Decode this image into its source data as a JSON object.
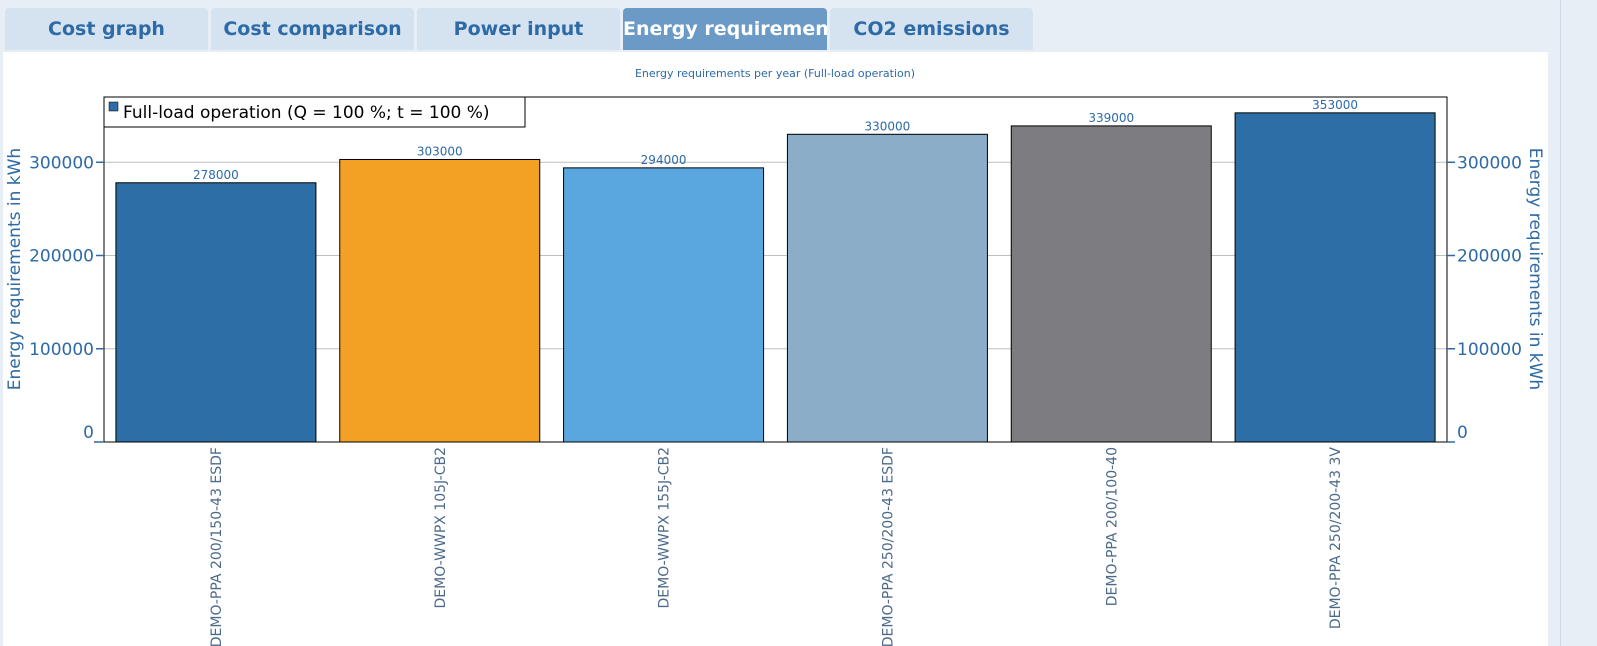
{
  "tabs": [
    {
      "label": "Cost graph",
      "active": false
    },
    {
      "label": "Cost comparison",
      "active": false
    },
    {
      "label": "Power input",
      "active": false
    },
    {
      "label": "Energy requirements",
      "active": true
    },
    {
      "label": "CO2 emissions",
      "active": false
    }
  ],
  "colors": {
    "accent": "#2d6aa6",
    "active_tab": "#6b9ac6",
    "tab_bg": "#d5e3f1",
    "axis_text": "#2d6aa6",
    "gridline": "#bfbfbf"
  },
  "chart_data": {
    "type": "bar",
    "title": "Energy requirements per year (Full-load operation)",
    "ylabel": "Energy requirements in kWh",
    "ylabel_right": "Energy requirements in kWh",
    "ylim": [
      0,
      370000
    ],
    "yticks": [
      0,
      100000,
      200000,
      300000
    ],
    "ytick_labels": [
      "0",
      "100000",
      "200000",
      "300000"
    ],
    "grid": true,
    "legend_position": "top-left",
    "series": [
      {
        "name": "Full-load operation (Q = 100 %; t = 100 %)",
        "color": "#2c6ea5"
      }
    ],
    "categories": [
      "DEMO-PPA 200/150-43 ESDF",
      "DEMO-WWPX 105J-CB2",
      "DEMO-WWPX 155J-CB2",
      "DEMO-PPA 250/200-43 ESDF",
      "DEMO-PPA 200/100-40",
      "DEMO-PPA 250/200-43 3V"
    ],
    "values": [
      278000,
      303000,
      294000,
      330000,
      339000,
      353000
    ],
    "value_labels": [
      "278000",
      "303000",
      "294000",
      "330000",
      "339000",
      "353000"
    ],
    "bar_colors": [
      "#2c6ea5",
      "#f3a125",
      "#5aa7df",
      "#8badc8",
      "#7d7c80",
      "#2c6ea5"
    ]
  }
}
